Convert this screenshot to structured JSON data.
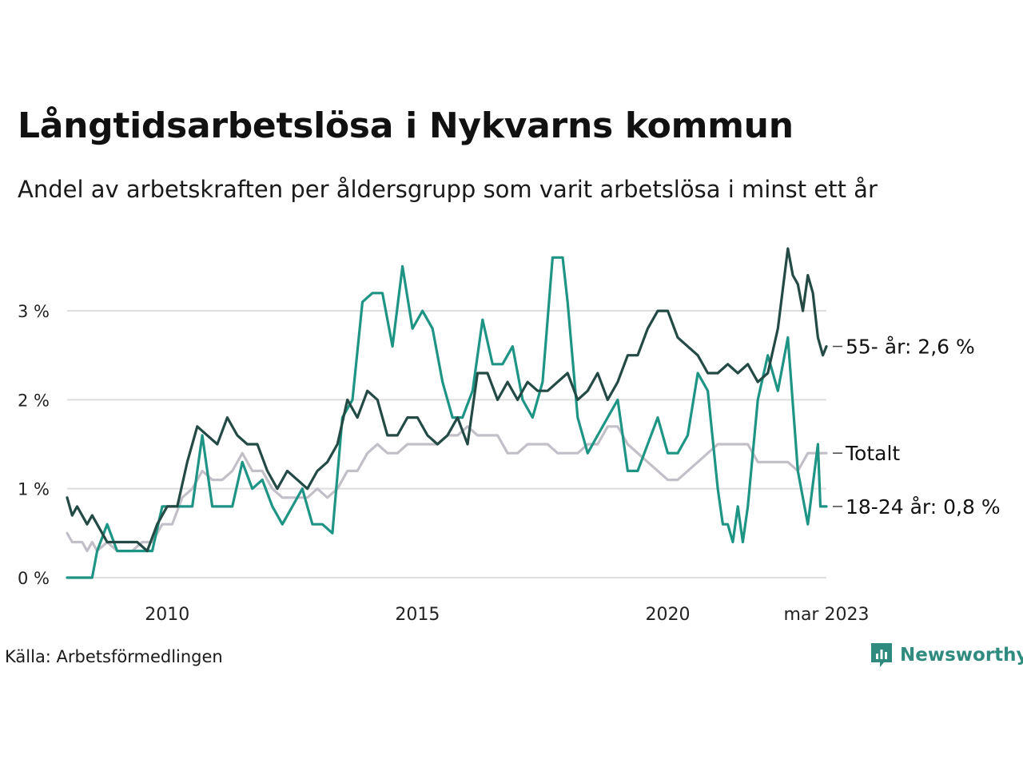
{
  "header": {
    "title": "Långtidsarbetslösa i Nykvarns kommun",
    "subtitle": "Andel av arbetskraften per åldersgrupp som varit arbetslösa i minst ett år"
  },
  "footer": {
    "source": "Källa: Arbetsförmedlingen",
    "brand": "Newsworthy",
    "brand_color": "#2e8b7d"
  },
  "chart_data": {
    "type": "line",
    "y_ticks": [
      {
        "value": 0,
        "label": "0 %"
      },
      {
        "value": 1,
        "label": "1 %"
      },
      {
        "value": 2,
        "label": "2 %"
      },
      {
        "value": 3,
        "label": "3 %"
      }
    ],
    "x_ticks": [
      {
        "value": 2010.0,
        "label": "2010"
      },
      {
        "value": 2015.0,
        "label": "2015"
      },
      {
        "value": 2020.0,
        "label": "2020"
      },
      {
        "value": 2023.17,
        "label": "mar 2023"
      }
    ],
    "xlim": [
      2008.0,
      2023.17
    ],
    "ylim": [
      0,
      3.8
    ],
    "grid": true,
    "legend": "direct labels at right end",
    "series": [
      {
        "label": "Totalt",
        "color": "#c3bfc9",
        "points": [
          [
            2008.0,
            0.5
          ],
          [
            2008.1,
            0.4
          ],
          [
            2008.2,
            0.4
          ],
          [
            2008.3,
            0.4
          ],
          [
            2008.4,
            0.3
          ],
          [
            2008.5,
            0.4
          ],
          [
            2008.6,
            0.3
          ],
          [
            2008.8,
            0.4
          ],
          [
            2009.0,
            0.3
          ],
          [
            2009.3,
            0.3
          ],
          [
            2009.5,
            0.4
          ],
          [
            2009.7,
            0.4
          ],
          [
            2009.9,
            0.6
          ],
          [
            2010.1,
            0.6
          ],
          [
            2010.3,
            0.9
          ],
          [
            2010.5,
            1.0
          ],
          [
            2010.7,
            1.2
          ],
          [
            2010.9,
            1.1
          ],
          [
            2011.1,
            1.1
          ],
          [
            2011.3,
            1.2
          ],
          [
            2011.5,
            1.4
          ],
          [
            2011.7,
            1.2
          ],
          [
            2011.9,
            1.2
          ],
          [
            2012.1,
            1.0
          ],
          [
            2012.3,
            0.9
          ],
          [
            2012.6,
            0.9
          ],
          [
            2012.8,
            0.9
          ],
          [
            2013.0,
            1.0
          ],
          [
            2013.2,
            0.9
          ],
          [
            2013.4,
            1.0
          ],
          [
            2013.6,
            1.2
          ],
          [
            2013.8,
            1.2
          ],
          [
            2014.0,
            1.4
          ],
          [
            2014.2,
            1.5
          ],
          [
            2014.4,
            1.4
          ],
          [
            2014.6,
            1.4
          ],
          [
            2014.8,
            1.5
          ],
          [
            2015.0,
            1.5
          ],
          [
            2015.2,
            1.5
          ],
          [
            2015.4,
            1.5
          ],
          [
            2015.6,
            1.6
          ],
          [
            2015.8,
            1.6
          ],
          [
            2016.0,
            1.7
          ],
          [
            2016.2,
            1.6
          ],
          [
            2016.4,
            1.6
          ],
          [
            2016.6,
            1.6
          ],
          [
            2016.8,
            1.4
          ],
          [
            2017.0,
            1.4
          ],
          [
            2017.2,
            1.5
          ],
          [
            2017.4,
            1.5
          ],
          [
            2017.6,
            1.5
          ],
          [
            2017.8,
            1.4
          ],
          [
            2018.0,
            1.4
          ],
          [
            2018.2,
            1.4
          ],
          [
            2018.4,
            1.5
          ],
          [
            2018.6,
            1.5
          ],
          [
            2018.8,
            1.7
          ],
          [
            2019.0,
            1.7
          ],
          [
            2019.2,
            1.5
          ],
          [
            2019.4,
            1.4
          ],
          [
            2019.6,
            1.3
          ],
          [
            2019.8,
            1.2
          ],
          [
            2020.0,
            1.1
          ],
          [
            2020.2,
            1.1
          ],
          [
            2020.4,
            1.2
          ],
          [
            2020.6,
            1.3
          ],
          [
            2020.8,
            1.4
          ],
          [
            2021.0,
            1.5
          ],
          [
            2021.2,
            1.5
          ],
          [
            2021.4,
            1.5
          ],
          [
            2021.6,
            1.5
          ],
          [
            2021.8,
            1.3
          ],
          [
            2022.0,
            1.3
          ],
          [
            2022.2,
            1.3
          ],
          [
            2022.4,
            1.3
          ],
          [
            2022.6,
            1.2
          ],
          [
            2022.8,
            1.4
          ],
          [
            2023.0,
            1.4
          ],
          [
            2023.17,
            1.4
          ]
        ]
      },
      {
        "label": "18-24 år",
        "end_label": "18-24 år: 0,8 %",
        "color": "#1e9484",
        "points": [
          [
            2008.0,
            0.0
          ],
          [
            2008.4,
            0.0
          ],
          [
            2008.5,
            0.0
          ],
          [
            2008.6,
            0.3
          ],
          [
            2008.8,
            0.6
          ],
          [
            2009.0,
            0.3
          ],
          [
            2009.3,
            0.3
          ],
          [
            2009.5,
            0.3
          ],
          [
            2009.7,
            0.3
          ],
          [
            2009.9,
            0.8
          ],
          [
            2010.1,
            0.8
          ],
          [
            2010.3,
            0.8
          ],
          [
            2010.5,
            0.8
          ],
          [
            2010.7,
            1.6
          ],
          [
            2010.9,
            0.8
          ],
          [
            2011.1,
            0.8
          ],
          [
            2011.3,
            0.8
          ],
          [
            2011.5,
            1.3
          ],
          [
            2011.7,
            1.0
          ],
          [
            2011.9,
            1.1
          ],
          [
            2012.1,
            0.8
          ],
          [
            2012.3,
            0.6
          ],
          [
            2012.5,
            0.8
          ],
          [
            2012.7,
            1.0
          ],
          [
            2012.9,
            0.6
          ],
          [
            2013.1,
            0.6
          ],
          [
            2013.3,
            0.5
          ],
          [
            2013.5,
            1.8
          ],
          [
            2013.7,
            2.0
          ],
          [
            2013.9,
            3.1
          ],
          [
            2014.1,
            3.2
          ],
          [
            2014.3,
            3.2
          ],
          [
            2014.5,
            2.6
          ],
          [
            2014.7,
            3.5
          ],
          [
            2014.9,
            2.8
          ],
          [
            2015.1,
            3.0
          ],
          [
            2015.3,
            2.8
          ],
          [
            2015.5,
            2.2
          ],
          [
            2015.7,
            1.8
          ],
          [
            2015.9,
            1.8
          ],
          [
            2016.1,
            2.1
          ],
          [
            2016.3,
            2.9
          ],
          [
            2016.5,
            2.4
          ],
          [
            2016.7,
            2.4
          ],
          [
            2016.9,
            2.6
          ],
          [
            2017.1,
            2.0
          ],
          [
            2017.3,
            1.8
          ],
          [
            2017.5,
            2.2
          ],
          [
            2017.7,
            3.6
          ],
          [
            2017.9,
            3.6
          ],
          [
            2018.0,
            3.1
          ],
          [
            2018.2,
            1.8
          ],
          [
            2018.4,
            1.4
          ],
          [
            2018.6,
            1.6
          ],
          [
            2018.8,
            1.8
          ],
          [
            2019.0,
            2.0
          ],
          [
            2019.2,
            1.2
          ],
          [
            2019.4,
            1.2
          ],
          [
            2019.6,
            1.5
          ],
          [
            2019.8,
            1.8
          ],
          [
            2020.0,
            1.4
          ],
          [
            2020.2,
            1.4
          ],
          [
            2020.4,
            1.6
          ],
          [
            2020.6,
            2.3
          ],
          [
            2020.8,
            2.1
          ],
          [
            2021.0,
            1.0
          ],
          [
            2021.1,
            0.6
          ],
          [
            2021.2,
            0.6
          ],
          [
            2021.3,
            0.4
          ],
          [
            2021.4,
            0.8
          ],
          [
            2021.5,
            0.4
          ],
          [
            2021.6,
            0.8
          ],
          [
            2021.8,
            2.0
          ],
          [
            2022.0,
            2.5
          ],
          [
            2022.2,
            2.1
          ],
          [
            2022.4,
            2.7
          ],
          [
            2022.6,
            1.2
          ],
          [
            2022.8,
            0.6
          ],
          [
            2023.0,
            1.5
          ],
          [
            2023.05,
            0.8
          ],
          [
            2023.17,
            0.8
          ]
        ]
      },
      {
        "label": "55- år",
        "end_label": "55- år: 2,6 %",
        "color": "#234a44",
        "points": [
          [
            2008.0,
            0.9
          ],
          [
            2008.1,
            0.7
          ],
          [
            2008.2,
            0.8
          ],
          [
            2008.3,
            0.7
          ],
          [
            2008.4,
            0.6
          ],
          [
            2008.5,
            0.7
          ],
          [
            2008.6,
            0.6
          ],
          [
            2008.8,
            0.4
          ],
          [
            2009.0,
            0.4
          ],
          [
            2009.2,
            0.4
          ],
          [
            2009.4,
            0.4
          ],
          [
            2009.6,
            0.3
          ],
          [
            2009.8,
            0.6
          ],
          [
            2010.0,
            0.8
          ],
          [
            2010.2,
            0.8
          ],
          [
            2010.4,
            1.3
          ],
          [
            2010.6,
            1.7
          ],
          [
            2010.8,
            1.6
          ],
          [
            2011.0,
            1.5
          ],
          [
            2011.2,
            1.8
          ],
          [
            2011.4,
            1.6
          ],
          [
            2011.6,
            1.5
          ],
          [
            2011.8,
            1.5
          ],
          [
            2012.0,
            1.2
          ],
          [
            2012.2,
            1.0
          ],
          [
            2012.4,
            1.2
          ],
          [
            2012.6,
            1.1
          ],
          [
            2012.8,
            1.0
          ],
          [
            2013.0,
            1.2
          ],
          [
            2013.2,
            1.3
          ],
          [
            2013.4,
            1.5
          ],
          [
            2013.6,
            2.0
          ],
          [
            2013.8,
            1.8
          ],
          [
            2014.0,
            2.1
          ],
          [
            2014.2,
            2.0
          ],
          [
            2014.4,
            1.6
          ],
          [
            2014.6,
            1.6
          ],
          [
            2014.8,
            1.8
          ],
          [
            2015.0,
            1.8
          ],
          [
            2015.2,
            1.6
          ],
          [
            2015.4,
            1.5
          ],
          [
            2015.6,
            1.6
          ],
          [
            2015.8,
            1.8
          ],
          [
            2016.0,
            1.5
          ],
          [
            2016.2,
            2.3
          ],
          [
            2016.4,
            2.3
          ],
          [
            2016.6,
            2.0
          ],
          [
            2016.8,
            2.2
          ],
          [
            2017.0,
            2.0
          ],
          [
            2017.2,
            2.2
          ],
          [
            2017.4,
            2.1
          ],
          [
            2017.6,
            2.1
          ],
          [
            2017.8,
            2.2
          ],
          [
            2018.0,
            2.3
          ],
          [
            2018.2,
            2.0
          ],
          [
            2018.4,
            2.1
          ],
          [
            2018.6,
            2.3
          ],
          [
            2018.8,
            2.0
          ],
          [
            2019.0,
            2.2
          ],
          [
            2019.2,
            2.5
          ],
          [
            2019.4,
            2.5
          ],
          [
            2019.6,
            2.8
          ],
          [
            2019.8,
            3.0
          ],
          [
            2020.0,
            3.0
          ],
          [
            2020.2,
            2.7
          ],
          [
            2020.4,
            2.6
          ],
          [
            2020.6,
            2.5
          ],
          [
            2020.8,
            2.3
          ],
          [
            2021.0,
            2.3
          ],
          [
            2021.2,
            2.4
          ],
          [
            2021.4,
            2.3
          ],
          [
            2021.6,
            2.4
          ],
          [
            2021.8,
            2.2
          ],
          [
            2022.0,
            2.3
          ],
          [
            2022.2,
            2.8
          ],
          [
            2022.4,
            3.7
          ],
          [
            2022.5,
            3.4
          ],
          [
            2022.6,
            3.3
          ],
          [
            2022.7,
            3.0
          ],
          [
            2022.8,
            3.4
          ],
          [
            2022.9,
            3.2
          ],
          [
            2023.0,
            2.7
          ],
          [
            2023.1,
            2.5
          ],
          [
            2023.17,
            2.6
          ]
        ]
      }
    ]
  }
}
